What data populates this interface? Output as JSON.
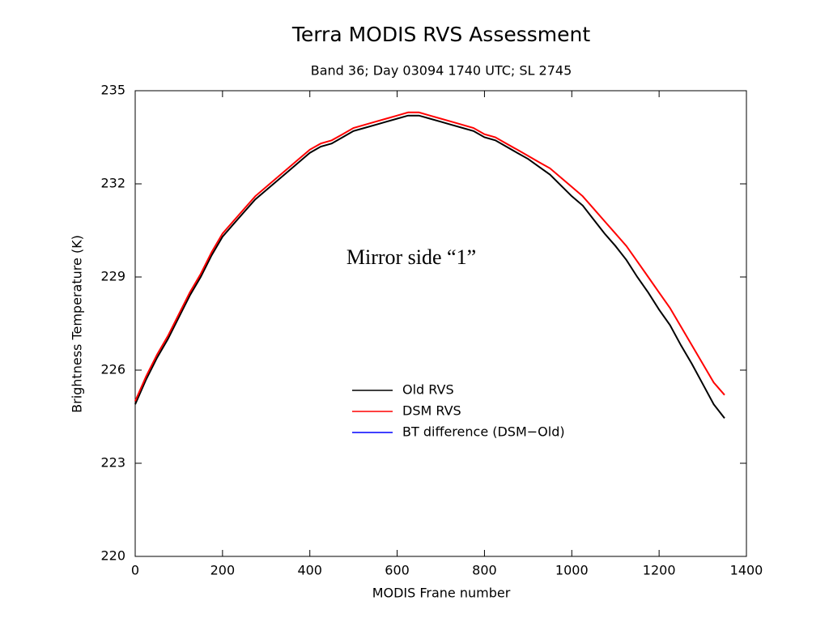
{
  "chart_data": {
    "type": "line",
    "title": "Terra MODIS RVS Assessment",
    "subtitle": "Band 36; Day 03094 1740 UTC; SL 2745",
    "xlabel": "MODIS Frane number",
    "ylabel": "Brightness Temperature (K)",
    "annotation": "Mirror side “1”",
    "x": [
      0,
      25,
      50,
      75,
      100,
      125,
      150,
      175,
      200,
      225,
      250,
      275,
      300,
      325,
      350,
      375,
      400,
      425,
      450,
      475,
      500,
      525,
      550,
      575,
      600,
      625,
      650,
      675,
      700,
      725,
      750,
      775,
      800,
      825,
      850,
      875,
      900,
      925,
      950,
      975,
      1000,
      1025,
      1050,
      1075,
      1100,
      1125,
      1150,
      1175,
      1200,
      1225,
      1250,
      1275,
      1300,
      1325,
      1350
    ],
    "series": [
      {
        "name": "Old RVS",
        "color": "#000000",
        "values": [
          224.9,
          225.7,
          226.4,
          227.0,
          227.7,
          228.4,
          229.0,
          229.7,
          230.3,
          230.7,
          231.1,
          231.5,
          231.8,
          232.1,
          232.4,
          232.7,
          233.0,
          233.2,
          233.3,
          233.5,
          233.7,
          233.8,
          233.9,
          234.0,
          234.1,
          234.2,
          234.2,
          234.1,
          234.0,
          233.9,
          233.8,
          233.7,
          233.5,
          233.4,
          233.2,
          233.0,
          232.8,
          232.55,
          232.3,
          231.95,
          231.6,
          231.3,
          230.85,
          230.4,
          230.0,
          229.55,
          229.0,
          228.5,
          227.95,
          227.45,
          226.8,
          226.2,
          225.55,
          224.9,
          224.45
        ]
      },
      {
        "name": "DSM RVS",
        "color": "#ff0000",
        "values": [
          225.0,
          225.8,
          226.5,
          227.1,
          227.8,
          228.5,
          229.1,
          229.8,
          230.4,
          230.8,
          231.2,
          231.6,
          231.9,
          232.2,
          232.5,
          232.8,
          233.1,
          233.3,
          233.4,
          233.6,
          233.8,
          233.9,
          234.0,
          234.1,
          234.2,
          234.3,
          234.3,
          234.2,
          234.1,
          234.0,
          233.9,
          233.8,
          233.6,
          233.5,
          233.3,
          233.1,
          232.9,
          232.7,
          232.5,
          232.2,
          231.9,
          231.6,
          231.2,
          230.8,
          230.4,
          230.0,
          229.5,
          229.0,
          228.5,
          228.0,
          227.4,
          226.8,
          226.2,
          225.6,
          225.2
        ]
      },
      {
        "name": "BT difference (DSM−Old)",
        "color": "#0000ff",
        "values": [
          null,
          null,
          null,
          null,
          null,
          null,
          null,
          null,
          null,
          null,
          null,
          null,
          null,
          null,
          null,
          null,
          null,
          null,
          null,
          null,
          null,
          null,
          null,
          null,
          null,
          null,
          null,
          null,
          null,
          null,
          null,
          null,
          null,
          null,
          null,
          null,
          null,
          null,
          null,
          null,
          null,
          null,
          null,
          null,
          null,
          null,
          null,
          null,
          null,
          null,
          null,
          null,
          null,
          null,
          null
        ]
      }
    ],
    "xlim": [
      0,
      1400
    ],
    "xticks": [
      0,
      200,
      400,
      600,
      800,
      1000,
      1200,
      1400
    ],
    "ylim": [
      220,
      235
    ],
    "yticks": [
      220,
      223,
      226,
      229,
      232,
      235
    ]
  }
}
